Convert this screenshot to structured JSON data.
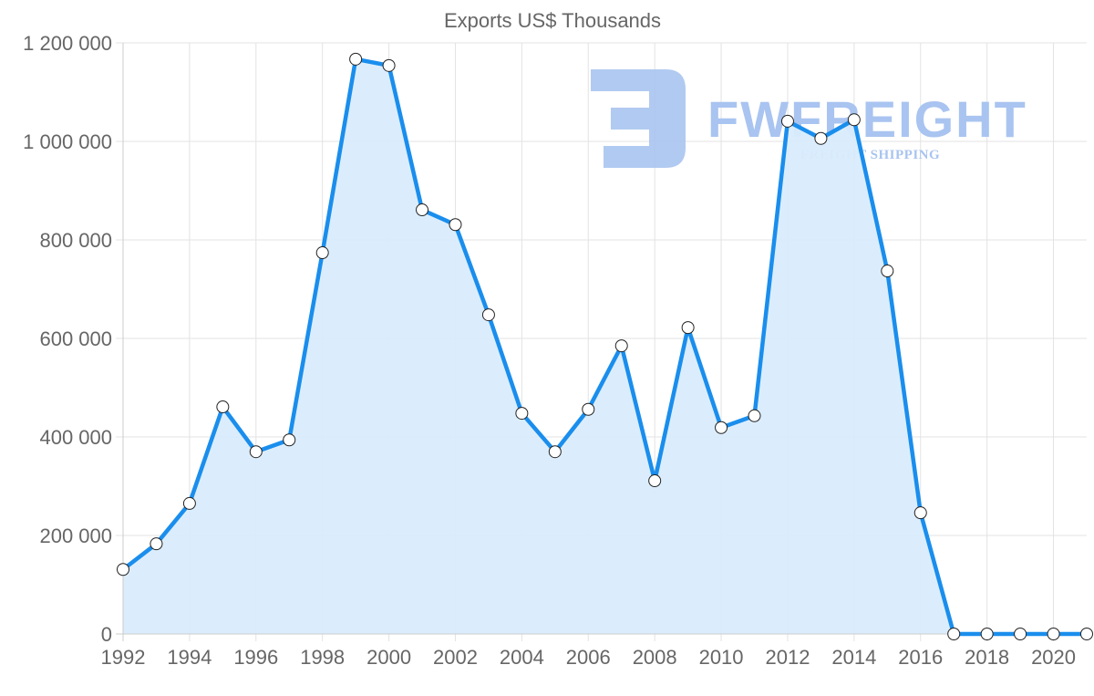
{
  "chart_data": {
    "type": "line",
    "title": "Exports US$ Thousands",
    "xlabel": "",
    "ylabel": "",
    "x": [
      1992,
      1993,
      1994,
      1995,
      1996,
      1997,
      1998,
      1999,
      2000,
      2001,
      2002,
      2003,
      2004,
      2005,
      2006,
      2007,
      2008,
      2009,
      2010,
      2011,
      2012,
      2013,
      2014,
      2015,
      2016,
      2017,
      2018,
      2019,
      2020,
      2021
    ],
    "series": [
      {
        "name": "Exports US$ Thousands",
        "values": [
          131000,
          183000,
          265000,
          461000,
          370000,
          394000,
          774000,
          1167000,
          1154000,
          861000,
          831000,
          648000,
          448000,
          370000,
          456000,
          585000,
          311000,
          622000,
          419000,
          443000,
          1041000,
          1006000,
          1044000,
          737000,
          246000,
          0,
          0,
          0,
          0,
          0
        ],
        "color": "#1a8eed",
        "fill": "#d9ecfc",
        "filled": true,
        "markers": "circle"
      }
    ],
    "ylim": [
      0,
      1200000
    ],
    "xlim": [
      1992,
      2021
    ],
    "y_ticks": [
      0,
      200000,
      400000,
      600000,
      800000,
      1000000,
      1200000
    ],
    "y_tick_labels": [
      "0",
      "200 000",
      "400 000",
      "600 000",
      "800 000",
      "1 000 000",
      "1 200 000"
    ],
    "x_ticks": [
      1992,
      1994,
      1996,
      1998,
      2000,
      2002,
      2004,
      2006,
      2008,
      2010,
      2012,
      2014,
      2016,
      2018,
      2020
    ],
    "x_tick_labels": [
      "1992",
      "1994",
      "1996",
      "1998",
      "2000",
      "2002",
      "2004",
      "2006",
      "2008",
      "2010",
      "2012",
      "2014",
      "2016",
      "2018",
      "2020"
    ],
    "grid": true,
    "legend": "none"
  },
  "watermark": {
    "brand": "FWFREIGHT",
    "tagline": "FREIGHT SHIPPING",
    "color": "#a9c4f0"
  },
  "colors": {
    "line": "#1a8eed",
    "area": "#d9ecfc",
    "grid": "#e3e3e3",
    "axis": "#cccccc",
    "text": "#666666",
    "marker_fill": "#ffffff",
    "marker_stroke": "#222222"
  }
}
